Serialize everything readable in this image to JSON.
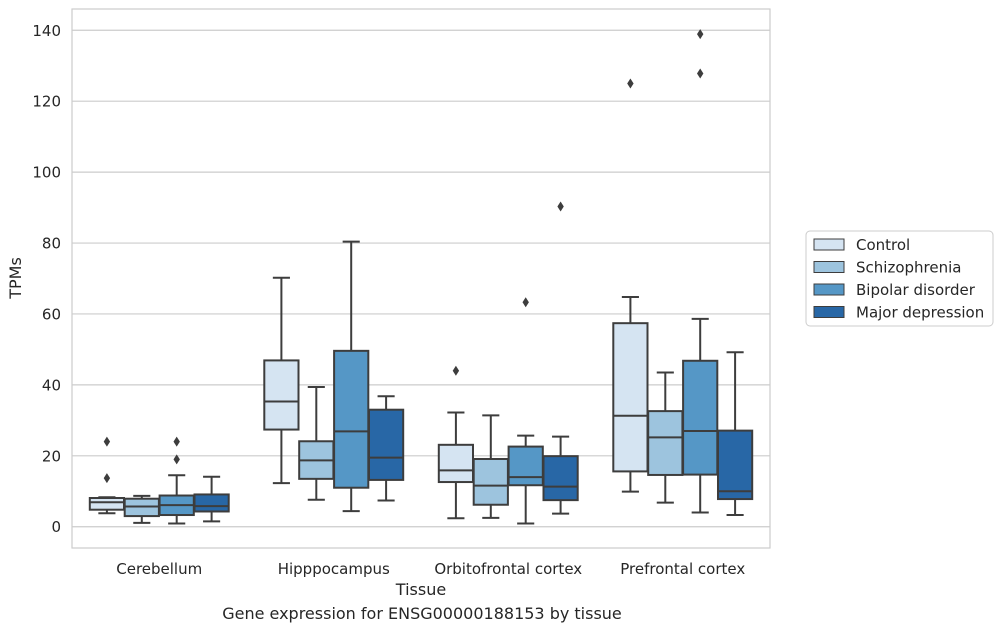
{
  "chart_data": {
    "type": "box",
    "xlabel": "Tissue",
    "ylabel": "TPMs",
    "caption": "Gene expression for ENSG00000188153 by tissue",
    "categories": [
      "Cerebellum",
      "Hipppocampus",
      "Orbitofrontal cortex",
      "Prefrontal cortex"
    ],
    "ylim": [
      -6,
      146
    ],
    "yticks": [
      0,
      20,
      40,
      60,
      80,
      100,
      120,
      140
    ],
    "grid": "horizontal",
    "legend_position": "right",
    "series": [
      {
        "name": "Control",
        "color": "#d5e4f2",
        "boxes": [
          {
            "whisker_low": 3.8,
            "q1": 4.8,
            "median": 6.9,
            "q3": 8.1,
            "whisker_high": 8.3,
            "outliers": [
              13.7,
              24.0
            ]
          },
          {
            "whisker_low": 12.3,
            "q1": 27.4,
            "median": 35.3,
            "q3": 46.9,
            "whisker_high": 70.2,
            "outliers": []
          },
          {
            "whisker_low": 2.4,
            "q1": 12.6,
            "median": 15.9,
            "q3": 23.1,
            "whisker_high": 32.2,
            "outliers": [
              44.0
            ]
          },
          {
            "whisker_low": 9.9,
            "q1": 15.6,
            "median": 31.3,
            "q3": 57.4,
            "whisker_high": 64.8,
            "outliers": [
              125.0
            ]
          }
        ]
      },
      {
        "name": "Schizophrenia",
        "color": "#9dc4de",
        "boxes": [
          {
            "whisker_low": 1.1,
            "q1": 3.0,
            "median": 5.7,
            "q3": 7.9,
            "whisker_high": 8.7,
            "outliers": []
          },
          {
            "whisker_low": 7.6,
            "q1": 13.5,
            "median": 18.7,
            "q3": 24.1,
            "whisker_high": 39.4,
            "outliers": []
          },
          {
            "whisker_low": 2.5,
            "q1": 6.2,
            "median": 11.6,
            "q3": 19.1,
            "whisker_high": 31.4,
            "outliers": []
          },
          {
            "whisker_low": 6.8,
            "q1": 14.6,
            "median": 25.2,
            "q3": 32.6,
            "whisker_high": 43.5,
            "outliers": []
          }
        ]
      },
      {
        "name": "Bipolar disorder",
        "color": "#5597c6",
        "boxes": [
          {
            "whisker_low": 0.9,
            "q1": 3.3,
            "median": 6.1,
            "q3": 8.8,
            "whisker_high": 14.5,
            "outliers": [
              19.0,
              24.0
            ]
          },
          {
            "whisker_low": 4.4,
            "q1": 11.0,
            "median": 26.9,
            "q3": 49.6,
            "whisker_high": 80.4,
            "outliers": []
          },
          {
            "whisker_low": 0.9,
            "q1": 11.7,
            "median": 14.0,
            "q3": 22.6,
            "whisker_high": 25.7,
            "outliers": [
              63.3
            ]
          },
          {
            "whisker_low": 4.0,
            "q1": 14.7,
            "median": 27.0,
            "q3": 46.8,
            "whisker_high": 58.6,
            "outliers": [
              127.8,
              138.9
            ]
          }
        ]
      },
      {
        "name": "Major depression",
        "color": "#2867a6",
        "boxes": [
          {
            "whisker_low": 1.5,
            "q1": 4.3,
            "median": 5.8,
            "q3": 9.1,
            "whisker_high": 14.1,
            "outliers": []
          },
          {
            "whisker_low": 7.4,
            "q1": 13.2,
            "median": 19.5,
            "q3": 33.0,
            "whisker_high": 36.8,
            "outliers": []
          },
          {
            "whisker_low": 3.7,
            "q1": 7.5,
            "median": 11.3,
            "q3": 19.9,
            "whisker_high": 25.4,
            "outliers": [
              90.3
            ]
          },
          {
            "whisker_low": 3.3,
            "q1": 7.8,
            "median": 10.0,
            "q3": 27.1,
            "whisker_high": 49.2,
            "outliers": []
          }
        ]
      }
    ]
  }
}
